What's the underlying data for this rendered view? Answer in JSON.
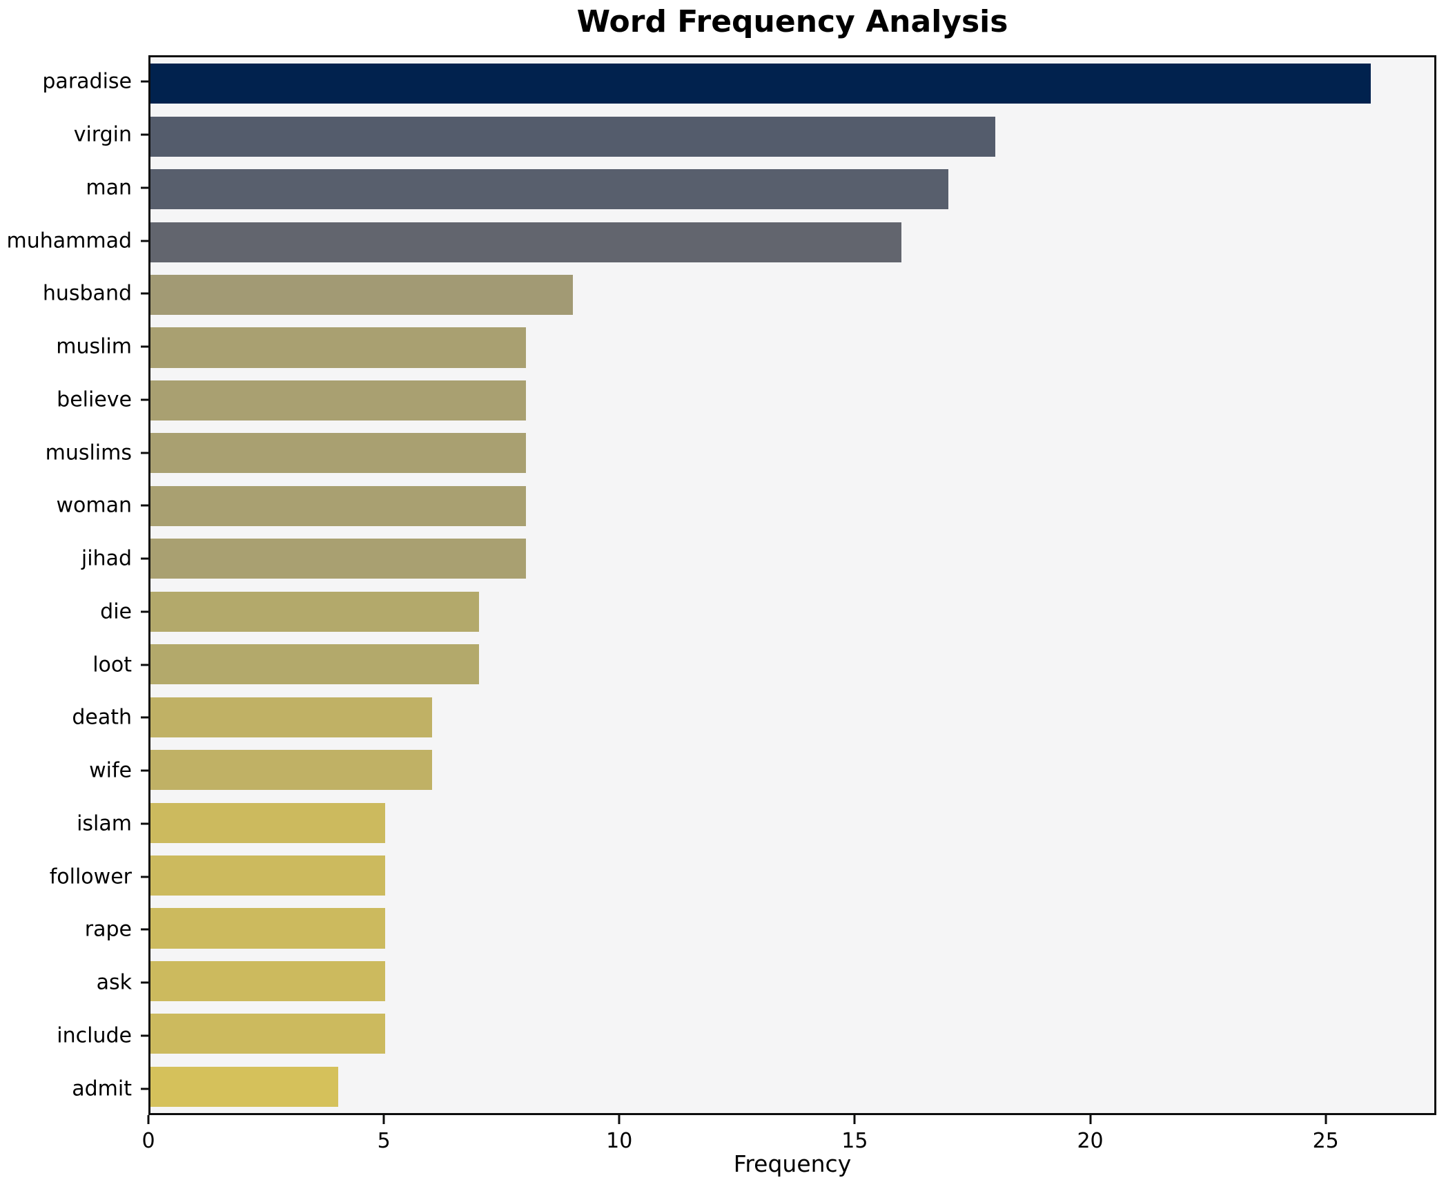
{
  "title": "Word Frequency Analysis",
  "chart_data": {
    "type": "bar",
    "orientation": "horizontal",
    "title": "Word Frequency Analysis",
    "xlabel": "Frequency",
    "ylabel": "",
    "xlim": [
      0,
      27.35
    ],
    "xticks": [
      0,
      5,
      10,
      15,
      20,
      25
    ],
    "grid": false,
    "legend": false,
    "plot_background": "#f5f5f6",
    "figure_background": "#ffffff",
    "spine_color": "#0d0d0d",
    "categories": [
      "paradise",
      "virgin",
      "man",
      "muhammad",
      "husband",
      "muslim",
      "believe",
      "muslims",
      "woman",
      "jihad",
      "die",
      "loot",
      "death",
      "wife",
      "islam",
      "follower",
      "rape",
      "ask",
      "include",
      "admit"
    ],
    "values": [
      26,
      18,
      17,
      16,
      9,
      8,
      8,
      8,
      8,
      8,
      7,
      7,
      6,
      6,
      5,
      5,
      5,
      5,
      5,
      4
    ],
    "bar_colors": [
      "#01224e",
      "#545c6c",
      "#585f6d",
      "#62656e",
      "#a29a74",
      "#a9a071",
      "#a9a071",
      "#a9a071",
      "#a9a071",
      "#a9a071",
      "#b3a96b",
      "#b3a96b",
      "#c0b165",
      "#c0b165",
      "#ccba5e",
      "#ccba5e",
      "#ccba5e",
      "#ccba5e",
      "#ccba5e",
      "#d5c15b"
    ]
  }
}
